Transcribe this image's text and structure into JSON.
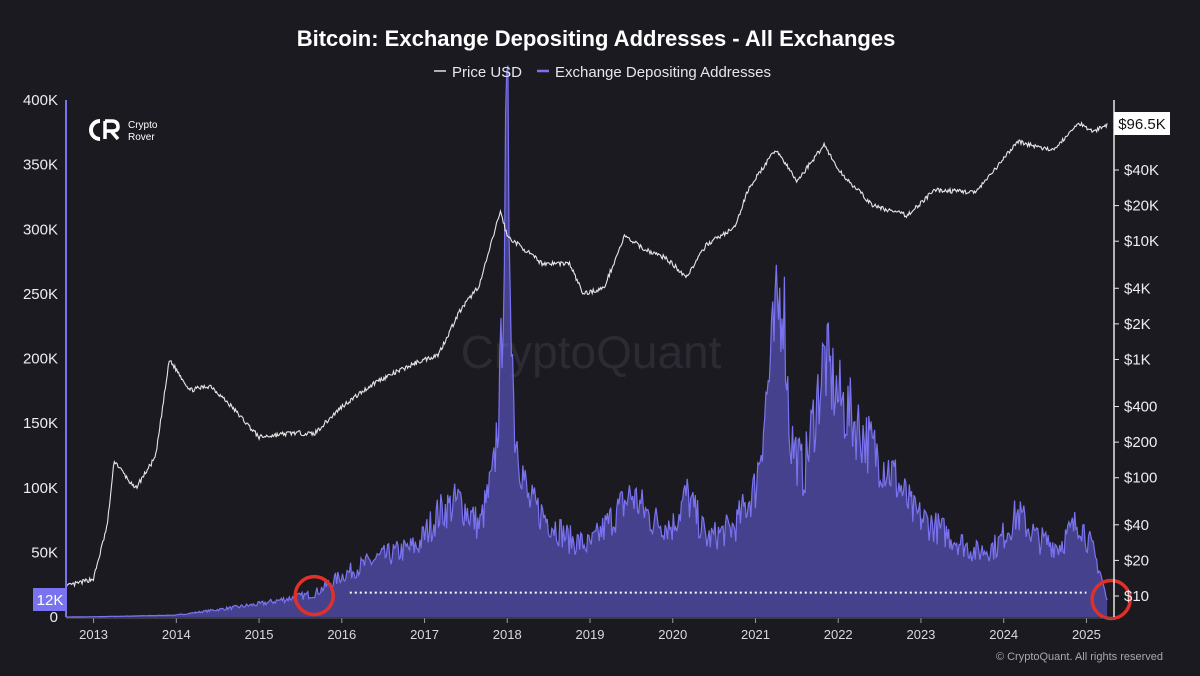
{
  "title": "Bitcoin: Exchange Depositing Addresses - All Exchanges",
  "legend": [
    {
      "label": "Price USD",
      "color": "#e0e0e0"
    },
    {
      "label": "Exchange Depositing Addresses",
      "color": "#7a73f0"
    }
  ],
  "logo": {
    "line1": "Crypto",
    "line2": "Rover",
    "mark": "CR"
  },
  "watermark": "CryptoQuant",
  "copyright": "© CryptoQuant. All rights reserved",
  "colors": {
    "background": "#1b1a20",
    "addresses": "#7a73f0",
    "price": "#e6e6e6",
    "highlight_circle": "#e0302a"
  },
  "chart_data": {
    "type": "line",
    "title": "Bitcoin: Exchange Depositing Addresses - All Exchanges",
    "x_range": [
      "2012-09",
      "2025-05"
    ],
    "x_ticks": [
      "2013",
      "2014",
      "2015",
      "2016",
      "2017",
      "2018",
      "2019",
      "2020",
      "2021",
      "2022",
      "2023",
      "2024",
      "2025"
    ],
    "y_left": {
      "ticks": [
        "400K",
        "350K",
        "300K",
        "250K",
        "200K",
        "150K",
        "100K",
        "50K",
        "0"
      ],
      "range": [
        0,
        400000
      ],
      "current_label": "12K",
      "current_value": 12000
    },
    "y_right": {
      "scale": "log",
      "ticks": [
        "$40K",
        "$20K",
        "$10K",
        "$4K",
        "$2K",
        "$1K",
        "$400",
        "$200",
        "$100",
        "$40",
        "$20",
        "$10"
      ],
      "current_label": "$96.5K",
      "current_value": 96500
    },
    "series": [
      {
        "name": "Exchange Depositing Addresses",
        "axis": "left",
        "points": [
          [
            "2012-09",
            0
          ],
          [
            "2013-01",
            200
          ],
          [
            "2013-06",
            700
          ],
          [
            "2014-01",
            1500
          ],
          [
            "2014-06",
            5000
          ],
          [
            "2015-01",
            10000
          ],
          [
            "2015-06",
            15000
          ],
          [
            "2015-09",
            18000
          ],
          [
            "2016-01",
            32000
          ],
          [
            "2016-06",
            45000
          ],
          [
            "2016-12",
            55000
          ],
          [
            "2017-03",
            80000
          ],
          [
            "2017-06",
            90000
          ],
          [
            "2017-09",
            70000
          ],
          [
            "2017-11",
            110000
          ],
          [
            "2017-12",
            180000
          ],
          [
            "2018-01",
            385000
          ],
          [
            "2018-02",
            150000
          ],
          [
            "2018-04",
            90000
          ],
          [
            "2018-07",
            75000
          ],
          [
            "2018-10",
            60000
          ],
          [
            "2019-01",
            55000
          ],
          [
            "2019-04",
            75000
          ],
          [
            "2019-07",
            95000
          ],
          [
            "2019-10",
            75000
          ],
          [
            "2020-01",
            70000
          ],
          [
            "2020-03",
            95000
          ],
          [
            "2020-06",
            60000
          ],
          [
            "2020-10",
            70000
          ],
          [
            "2021-01",
            100000
          ],
          [
            "2021-04",
            230000
          ],
          [
            "2021-05",
            255000
          ],
          [
            "2021-06",
            140000
          ],
          [
            "2021-08",
            110000
          ],
          [
            "2021-11",
            200000
          ],
          [
            "2022-01",
            170000
          ],
          [
            "2022-06",
            130000
          ],
          [
            "2022-09",
            110000
          ],
          [
            "2022-12",
            80000
          ],
          [
            "2023-03",
            70000
          ],
          [
            "2023-06",
            60000
          ],
          [
            "2023-09",
            50000
          ],
          [
            "2023-12",
            55000
          ],
          [
            "2024-03",
            80000
          ],
          [
            "2024-06",
            60000
          ],
          [
            "2024-09",
            55000
          ],
          [
            "2024-12",
            75000
          ],
          [
            "2025-02",
            50000
          ],
          [
            "2025-03",
            35000
          ],
          [
            "2025-04",
            12000
          ]
        ]
      },
      {
        "name": "Price USD",
        "axis": "right",
        "points": [
          [
            "2012-09",
            12
          ],
          [
            "2013-01",
            14
          ],
          [
            "2013-03",
            40
          ],
          [
            "2013-04",
            140
          ],
          [
            "2013-07",
            80
          ],
          [
            "2013-10",
            150
          ],
          [
            "2013-12",
            1000
          ],
          [
            "2014-03",
            550
          ],
          [
            "2014-06",
            600
          ],
          [
            "2014-09",
            400
          ],
          [
            "2015-01",
            220
          ],
          [
            "2015-06",
            240
          ],
          [
            "2015-09",
            235
          ],
          [
            "2016-01",
            400
          ],
          [
            "2016-06",
            650
          ],
          [
            "2016-12",
            950
          ],
          [
            "2017-03",
            1100
          ],
          [
            "2017-06",
            2500
          ],
          [
            "2017-09",
            4300
          ],
          [
            "2017-12",
            18000
          ],
          [
            "2018-01",
            11000
          ],
          [
            "2018-03",
            9000
          ],
          [
            "2018-06",
            6500
          ],
          [
            "2018-10",
            6500
          ],
          [
            "2018-12",
            3600
          ],
          [
            "2019-03",
            4000
          ],
          [
            "2019-06",
            11000
          ],
          [
            "2019-09",
            8500
          ],
          [
            "2019-12",
            7200
          ],
          [
            "2020-03",
            5000
          ],
          [
            "2020-06",
            9500
          ],
          [
            "2020-10",
            13000
          ],
          [
            "2020-12",
            28000
          ],
          [
            "2021-04",
            60000
          ],
          [
            "2021-07",
            32000
          ],
          [
            "2021-11",
            66000
          ],
          [
            "2022-01",
            40000
          ],
          [
            "2022-06",
            20000
          ],
          [
            "2022-11",
            16500
          ],
          [
            "2023-03",
            27000
          ],
          [
            "2023-09",
            26000
          ],
          [
            "2023-12",
            42000
          ],
          [
            "2024-03",
            70000
          ],
          [
            "2024-08",
            58000
          ],
          [
            "2024-12",
            100000
          ],
          [
            "2025-02",
            85000
          ],
          [
            "2025-04",
            96500
          ]
        ]
      }
    ],
    "reference_line": {
      "style": "dotted",
      "from": "2016-01",
      "to": "2025-01",
      "value": 15000
    },
    "highlight_circles": [
      "2015-09",
      "2025-04"
    ]
  }
}
